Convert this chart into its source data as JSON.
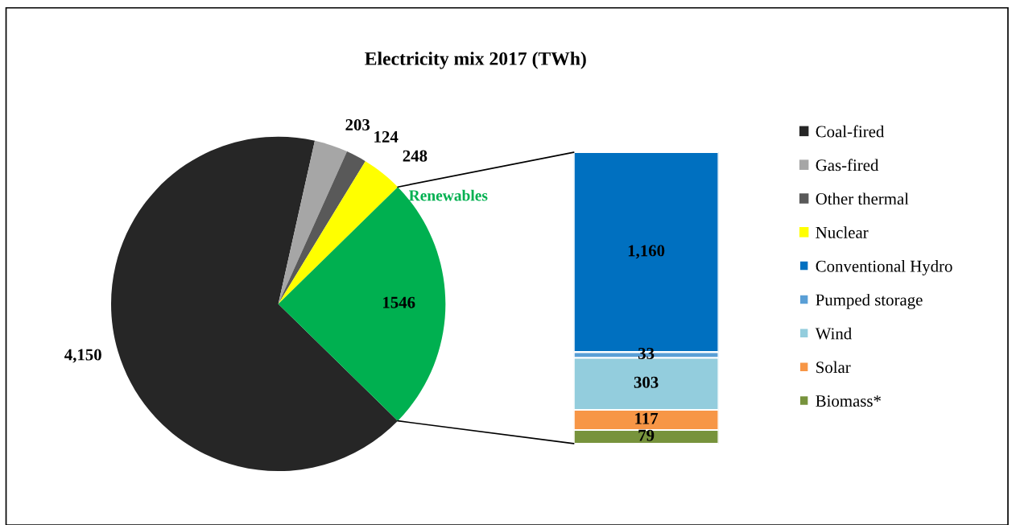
{
  "chart_data": [
    {
      "type": "pie",
      "title": "Electricity mix 2017 (TWh)",
      "categories": [
        "Coal-fired",
        "Gas-fired",
        "Other thermal",
        "Nuclear",
        "Renewables"
      ],
      "values": [
        4150,
        203,
        124,
        248,
        1546
      ],
      "colors": [
        "#262626",
        "#a6a6a6",
        "#595959",
        "#ffff00",
        "#00b050"
      ],
      "value_labels": [
        "4,150",
        "203",
        "124",
        "248",
        "1546"
      ],
      "legend": "right"
    },
    {
      "type": "bar",
      "stacked": true,
      "categories": [
        null
      ],
      "legend": "right",
      "series": [
        {
          "name": "Biomass*",
          "color": "#77933c",
          "values": [
            79
          ],
          "value_labels": [
            "79"
          ]
        },
        {
          "name": "Solar",
          "color": "#f79646",
          "values": [
            117
          ],
          "value_labels": [
            "117"
          ]
        },
        {
          "name": "Wind",
          "color": "#93cddd",
          "values": [
            303
          ],
          "value_labels": [
            "303"
          ]
        },
        {
          "name": "Pumped storage",
          "color": "#5a9fd6",
          "values": [
            33
          ],
          "value_labels": [
            "33"
          ]
        },
        {
          "name": "Conventional Hydro",
          "color": "#0070c0",
          "values": [
            1160
          ],
          "value_labels": [
            "1,160"
          ]
        }
      ]
    }
  ]
}
